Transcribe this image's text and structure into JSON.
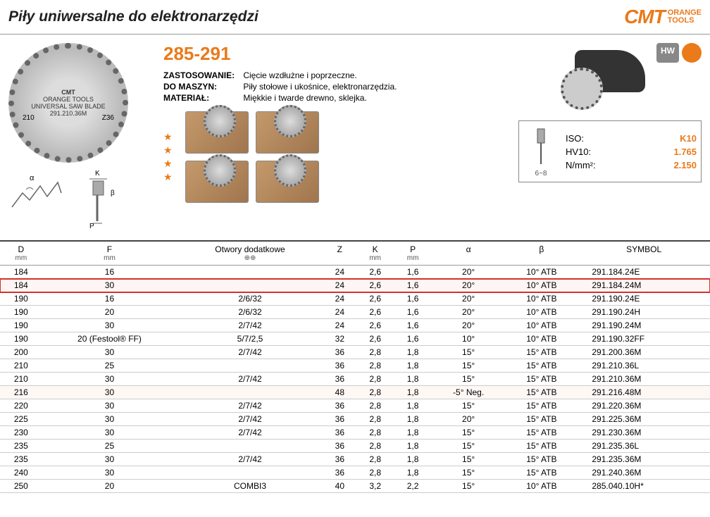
{
  "header": {
    "title": "Piły uniwersalne do elektronarzędzi",
    "logo_brand": "CMT",
    "logo_line1": "ORANGE",
    "logo_line2": "TOOLS"
  },
  "blade": {
    "brand": "CMT",
    "subtitle": "ORANGE TOOLS",
    "desc": "UNIVERSAL SAW BLADE",
    "model": "291.210.36M",
    "left_spec": "210",
    "right_spec": "Z36"
  },
  "info": {
    "code": "285-291",
    "app_label": "ZASTOSOWANIE:",
    "app_text": "Cięcie wzdłużne i poprzeczne.",
    "mach_label": "DO MASZYN:",
    "mach_text": "Piły stołowe i ukośnice, elektronarzędzia.",
    "mat_label": "MATERIAŁ:",
    "mat_text": "Miękkie i twarde drewno, sklejka."
  },
  "badges": {
    "hw": "HW"
  },
  "iso": {
    "angle": "6~8",
    "rows": [
      {
        "label": "ISO:",
        "value": "K10"
      },
      {
        "label": "HV10:",
        "value": "1.765"
      },
      {
        "label": "N/mm²:",
        "value": "2.150"
      }
    ]
  },
  "table": {
    "columns": [
      {
        "label": "D",
        "unit": "mm"
      },
      {
        "label": "F",
        "unit": "mm"
      },
      {
        "label": "Otwory dodatkowe",
        "unit": "⊕⊕"
      },
      {
        "label": "Z",
        "unit": ""
      },
      {
        "label": "K",
        "unit": "mm"
      },
      {
        "label": "P",
        "unit": "mm"
      },
      {
        "label": "α",
        "unit": ""
      },
      {
        "label": "β",
        "unit": ""
      },
      {
        "label": "SYMBOL",
        "unit": ""
      }
    ],
    "rows": [
      {
        "d": "184",
        "f": "16",
        "o": "",
        "z": "24",
        "k": "2,6",
        "p": "1,6",
        "a": "20°",
        "b": "10° ATB",
        "s": "291.184.24E",
        "hl": false
      },
      {
        "d": "184",
        "f": "30",
        "o": "",
        "z": "24",
        "k": "2,6",
        "p": "1,6",
        "a": "20°",
        "b": "10° ATB",
        "s": "291.184.24M",
        "hl": true
      },
      {
        "d": "190",
        "f": "16",
        "o": "2/6/32",
        "z": "24",
        "k": "2,6",
        "p": "1,6",
        "a": "20°",
        "b": "10° ATB",
        "s": "291.190.24E",
        "hl": false
      },
      {
        "d": "190",
        "f": "20",
        "o": "2/6/32",
        "z": "24",
        "k": "2,6",
        "p": "1,6",
        "a": "20°",
        "b": "10° ATB",
        "s": "291.190.24H",
        "hl": false
      },
      {
        "d": "190",
        "f": "30",
        "o": "2/7/42",
        "z": "24",
        "k": "2,6",
        "p": "1,6",
        "a": "20°",
        "b": "10° ATB",
        "s": "291.190.24M",
        "hl": false
      },
      {
        "d": "190",
        "f": "20 (Festool® FF)",
        "o": "5/7/2,5",
        "z": "32",
        "k": "2,6",
        "p": "1,6",
        "a": "10°",
        "b": "10° ATB",
        "s": "291.190.32FF",
        "hl": false
      },
      {
        "d": "200",
        "f": "30",
        "o": "2/7/42",
        "z": "36",
        "k": "2,8",
        "p": "1,8",
        "a": "15°",
        "b": "15° ATB",
        "s": "291.200.36M",
        "hl": false
      },
      {
        "d": "210",
        "f": "25",
        "o": "",
        "z": "36",
        "k": "2,8",
        "p": "1,8",
        "a": "15°",
        "b": "15° ATB",
        "s": "291.210.36L",
        "hl": false
      },
      {
        "d": "210",
        "f": "30",
        "o": "2/7/42",
        "z": "36",
        "k": "2,8",
        "p": "1,8",
        "a": "15°",
        "b": "15° ATB",
        "s": "291.210.36M",
        "hl": false
      },
      {
        "d": "216",
        "f": "30",
        "o": "",
        "z": "48",
        "k": "2,8",
        "p": "1,8",
        "a": "-5° Neg.",
        "b": "15° ATB",
        "s": "291.216.48M",
        "hl": false,
        "soft": true
      },
      {
        "d": "220",
        "f": "30",
        "o": "2/7/42",
        "z": "36",
        "k": "2,8",
        "p": "1,8",
        "a": "15°",
        "b": "15° ATB",
        "s": "291.220.36M",
        "hl": false
      },
      {
        "d": "225",
        "f": "30",
        "o": "2/7/42",
        "z": "36",
        "k": "2,8",
        "p": "1,8",
        "a": "20°",
        "b": "15° ATB",
        "s": "291.225.36M",
        "hl": false
      },
      {
        "d": "230",
        "f": "30",
        "o": "2/7/42",
        "z": "36",
        "k": "2,8",
        "p": "1,8",
        "a": "15°",
        "b": "15° ATB",
        "s": "291.230.36M",
        "hl": false
      },
      {
        "d": "235",
        "f": "25",
        "o": "",
        "z": "36",
        "k": "2,8",
        "p": "1,8",
        "a": "15°",
        "b": "15° ATB",
        "s": "291.235.36L",
        "hl": false
      },
      {
        "d": "235",
        "f": "30",
        "o": "2/7/42",
        "z": "36",
        "k": "2,8",
        "p": "1,8",
        "a": "15°",
        "b": "15° ATB",
        "s": "291.235.36M",
        "hl": false
      },
      {
        "d": "240",
        "f": "30",
        "o": "",
        "z": "36",
        "k": "2,8",
        "p": "1,8",
        "a": "15°",
        "b": "15° ATB",
        "s": "291.240.36M",
        "hl": false
      },
      {
        "d": "250",
        "f": "20",
        "o": "COMBI3",
        "z": "40",
        "k": "3,2",
        "p": "2,2",
        "a": "15°",
        "b": "10° ATB",
        "s": "285.040.10H*",
        "hl": false
      }
    ]
  },
  "diag_labels": {
    "alpha": "α",
    "k": "K",
    "beta": "β",
    "p": "P"
  }
}
